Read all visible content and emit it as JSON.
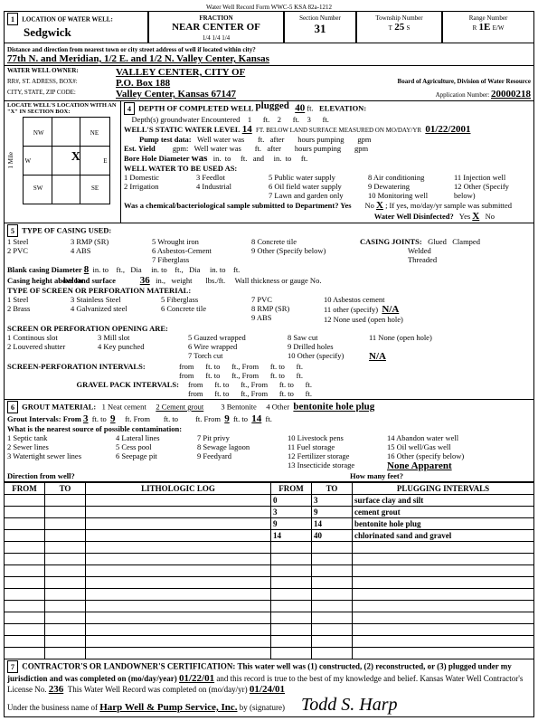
{
  "header": {
    "title_small": "Water Well Record    Form WWC-5    KSA 82a-1212",
    "loc_label": "LOCATION OF WATER WELL:",
    "county": "Sedgwick",
    "fraction_label": "FRACTION",
    "fraction_hand": "NEAR CENTER OF",
    "fraction_ticks": "1/4                1/4                1/4",
    "section_label": "Section Number",
    "section": "31",
    "township_label": "Township Number",
    "township_t": "T",
    "township": "25",
    "township_s": "S",
    "range_label": "Range Number",
    "range_r": "R",
    "range": "1E",
    "range_ew": "E/W"
  },
  "line2_label": "Distance and direction from nearest town or city   street address of well if located within city?",
  "line2": "77th N. and Meridian, 1/2 E. and 1/2 N.          Valley Center, Kansas",
  "owner": {
    "label": "WATER WELL OWNER:",
    "name": "VALLEY CENTER, CITY OF",
    "addr_label": "RR#, ST. ADRESS, BOX#:",
    "addr": "P.O. Box 188",
    "csz_label": "CITY, STATE, ZIP CODE:",
    "csz": "Valley Center, Kansas        67147",
    "board": "Board of Agriculture, Division of Water Resource",
    "app_label": "Application Number:",
    "app": "20000218"
  },
  "locbox": {
    "label": "LOCATE WELL'S LOCATION WITH AN \"X\" IN SECTION BOX:",
    "nw": "NW",
    "ne": "NE",
    "sw": "SW",
    "se": "SE",
    "n": "N",
    "s": "S",
    "w": "W",
    "e": "E",
    "side_label": "1 Mile"
  },
  "sec4": {
    "depth_label": "DEPTH OF COMPLETED WELL",
    "depth_hand_over": "plugged",
    "depth": "40",
    "depth_unit": "ft.",
    "elev_label": "ELEVATION:",
    "gw_label": "Depth(s) groundwater Encountered",
    "gw1": "1",
    "gw2": "2",
    "gw3": "3",
    "ft": "ft.",
    "static_label": "WELL'S STATIC WATER LEVEL",
    "static": "14",
    "static_tail": "FT. BELOW LAND SURFACE MEASURED ON mo/day/yr",
    "static_date": "01/22/2001",
    "pump_label": "Pump test data:",
    "well_water_was": "Well water was",
    "after": "after",
    "hours_pumping": "hours pumping",
    "gpm": "gpm",
    "est_label": "Est. Yield",
    "bore_label": "Bore Hole Diameter",
    "bore_hand": "was",
    "in": "in.",
    "to": "to",
    "and": "and",
    "uses_label": "WELL WATER TO BE USED AS:",
    "u1": "1 Domestic",
    "u2": "2 Irrigation",
    "u3": "3 Feedlot",
    "u4": "4 Industrial",
    "u5": "5 Public water supply",
    "u6": "6 Oil field water supply",
    "u7": "7 Lawn and garden only",
    "u8": "8 Air conditioning",
    "u9": "9 Dewatering",
    "u10": "10 Monitoring well",
    "u11": "11 Injection well",
    "u12": "12 Other (Specify below)",
    "chem": "Was a chemical/bacteriological sample submitted to Department?  Yes",
    "chem_no": "No",
    "chem_x": "X",
    "chem_tail": "; If yes, mo/day/yr sample was submitted",
    "disinf": "Water Well Disinfected?",
    "disinf_yes": "Yes",
    "disinf_x": "X",
    "disinf_no": "No"
  },
  "sec5": {
    "title": "TYPE OF CASING USED:",
    "c1": "1 Steel",
    "c2": "2 PVC",
    "c3": "3 RMP (SR)",
    "c4": "4 ABS",
    "c5": "5 Wrought iron",
    "c6": "6 Asbestos-Cement",
    "c7": "7 Fiberglass",
    "c8": "8 Concrete tile",
    "c9": "9 Other (Specify below)",
    "joints_label": "CASING JOINTS:",
    "j1": "Glued",
    "j2": "Clamped",
    "j3": "Welded",
    "j4": "Threaded",
    "blank_label": "Blank casing Diameter",
    "blank": "8",
    "dia": "Dia",
    "ft": "ft.",
    "in": "in.",
    "to": "to",
    "below": "below",
    "height_label": "Casing height above land surface",
    "height": "36",
    "weight": "weight",
    "lbs": "lbs./ft.",
    "thick": "Wall thickness or gauge No.",
    "screen_title": "TYPE OF SCREEN OR PERFORATION MATERIAL:",
    "s1": "1 Steel",
    "s2": "2 Brass",
    "s3": "3 Stainless Steel",
    "s4": "4 Galvanized steel",
    "s5": "5 Fiberglass",
    "s6": "6 Concrete tile",
    "s7": "7 PVC",
    "s8": "8 RMP (SR)",
    "s9": "9 ABS",
    "s10": "10 Asbestos cement",
    "s11": "11 other (specify)",
    "s11v": "N/A",
    "s12": "12 None used (open hole)",
    "open_title": "SCREEN OR PERFORATION OPENING ARE:",
    "o1": "1 Continous slot",
    "o2": "2 Louvered shutter",
    "o3": "3 Mill slot",
    "o4": "4 Key punched",
    "o5": "5 Gauzed wrapped",
    "o6": "6 Wire wrapped",
    "o7": "7 Torch cut",
    "o8": "8 Saw cut",
    "o9": "9 Drilled holes",
    "o10": "10 Other  (specify)",
    "o10v": "N/A",
    "o11": "11 None (open hole)",
    "spi_label": "SCREEN-PERFORATION INTERVALS:",
    "from": "from",
    "fto": "ft.  to",
    "ftF": "ft., From",
    "gpi_label": "GRAVEL PACK INTERVALS:"
  },
  "sec6": {
    "title": "GROUT MATERIAL:",
    "g1": "1 Neat cement",
    "g2": "2 Cement grout",
    "g3": "3 Bentonite",
    "g4": "4 Other",
    "g4v": "bentonite hole plug",
    "gi": "Grout Intervals:  From",
    "gi1": "3",
    "gito": "ft.  to",
    "gi2": "9",
    "giF": "ft.  From",
    "gitof": "ft.   to",
    "gi3": "9",
    "gi4": "14",
    "gift": "ft.",
    "near": "What is the nearest source of possible contamination:",
    "n1": "1 Septic tank",
    "n2": "2 Sewer lines",
    "n3": "3 Watertight sewer lines",
    "n4": "4 Lateral lines",
    "n5": "5 Cess pool",
    "n6": "6 Seepage pit",
    "n7": "7 Pit privy",
    "n8": "8 Sewage lagoon",
    "n9": "9 Feedyard",
    "n10": "10 Livestock pens",
    "n11": "11 Fuel storage",
    "n12": "12 Fertilizer storage",
    "n13": "13 Insecticide storage",
    "n14": "14 Abandon water well",
    "n15": "15 Oil well/Gas well",
    "n16": "16 Other (specify below)",
    "n16v": "None Apparent",
    "dir": "Direction from well?",
    "howmany": "How many feet?"
  },
  "log": {
    "h1": "FROM",
    "h2": "TO",
    "h3": "LITHOLOGIC LOG",
    "h4": "FROM",
    "h5": "TO",
    "h6": "PLUGGING INTERVALS",
    "rows": [
      {
        "f": "0",
        "t": "3",
        "d": "surface clay and silt"
      },
      {
        "f": "3",
        "t": "9",
        "d": "cement grout"
      },
      {
        "f": "9",
        "t": "14",
        "d": "bentonite hole plug"
      },
      {
        "f": "14",
        "t": "40",
        "d": "chlorinated sand and gravel"
      }
    ]
  },
  "sec7": {
    "text1": "CONTRACTOR'S OR LANDOWNER'S CERTIFICATION:  This water well was (1) constructed, (2) reconstructed, or (3) plugged under my jurisdiction and was completed on (mo/day/year)",
    "date1": "01/22/01",
    "text2": "and this record is true to the best of my knowledge and belief.  Kansas Water Well Contractor's License No.",
    "lic": "236",
    "text3": "This Water Well Record was completed on (mo/day/yr)",
    "date2": "01/24/01",
    "text4": "Under the business name of",
    "biz": "Harp Well & Pump Service, Inc.",
    "text5": "by (signature)",
    "sig": "Todd  S.  Harp"
  }
}
